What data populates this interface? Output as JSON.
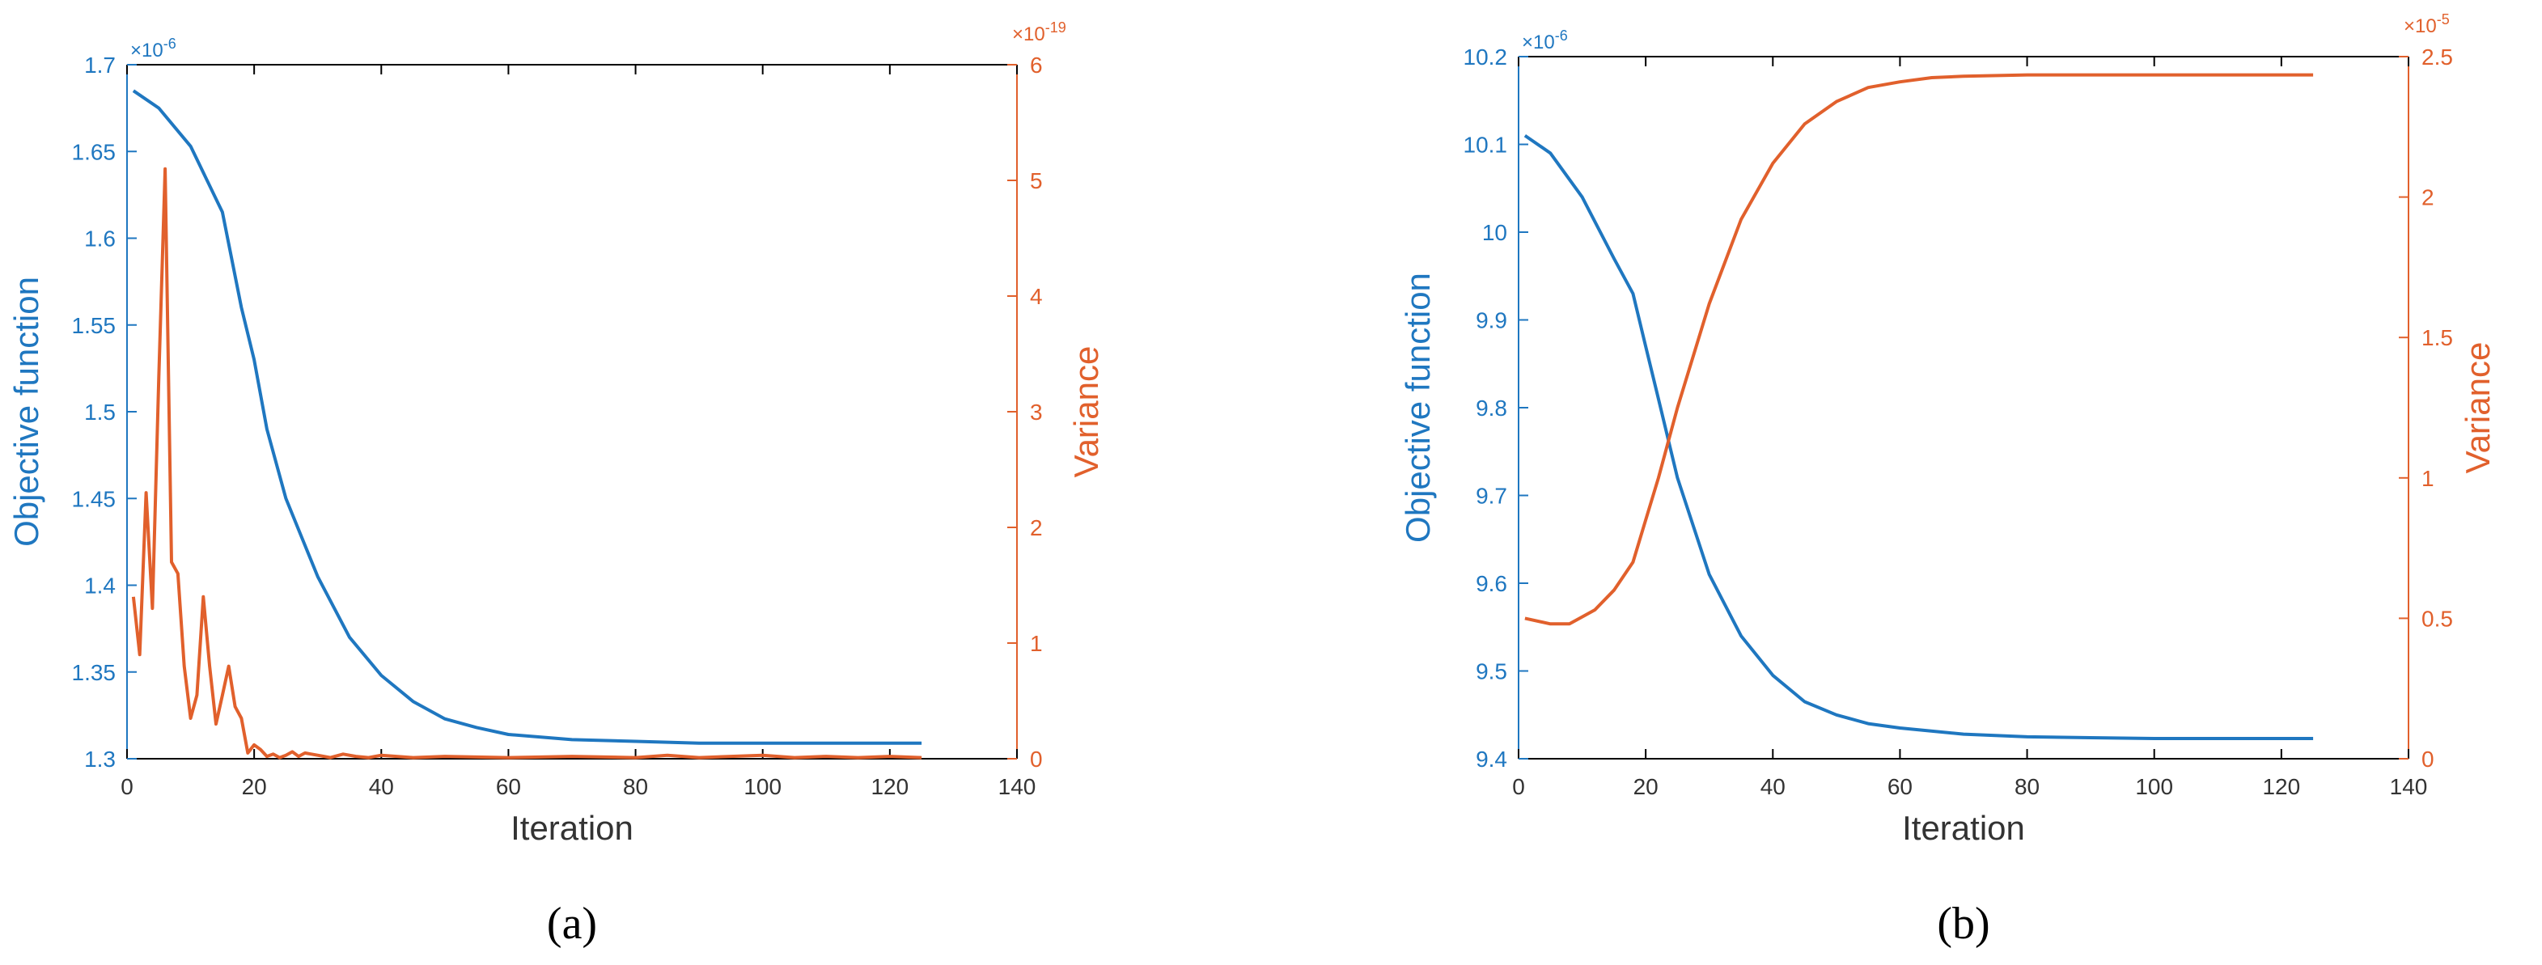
{
  "colors": {
    "left": "#1F77C0",
    "right": "#E1602C",
    "axis": "#000000"
  },
  "chart_data": [
    {
      "type": "line",
      "panel_label": "(a)",
      "xlabel": "Iteration",
      "ylabel_left": "Objective function",
      "ylabel_right": "Variance",
      "xlim": [
        0,
        140
      ],
      "xticks": [
        0,
        20,
        40,
        60,
        80,
        100,
        120,
        140
      ],
      "ylim_left": [
        1.3,
        1.7
      ],
      "yticks_left": [
        "1.3",
        "1.35",
        "1.4",
        "1.45",
        "1.5",
        "1.55",
        "1.6",
        "1.65",
        "1.7"
      ],
      "yscale_left": "×10",
      "yscale_left_exp": "-6",
      "ylim_right": [
        0,
        6
      ],
      "yticks_right": [
        "0",
        "1",
        "2",
        "3",
        "4",
        "5",
        "6"
      ],
      "yscale_right": "×10",
      "yscale_right_exp": "-19",
      "grid": false,
      "series": [
        {
          "axis": "left",
          "x": [
            1,
            5,
            10,
            15,
            18,
            20,
            22,
            25,
            30,
            35,
            40,
            45,
            50,
            55,
            60,
            70,
            80,
            90,
            100,
            110,
            125
          ],
          "y": [
            1.685,
            1.675,
            1.653,
            1.615,
            1.56,
            1.53,
            1.49,
            1.45,
            1.405,
            1.37,
            1.348,
            1.333,
            1.323,
            1.318,
            1.314,
            1.311,
            1.31,
            1.309,
            1.309,
            1.309,
            1.309
          ]
        },
        {
          "axis": "right",
          "x": [
            1,
            2,
            3,
            4,
            5,
            6,
            7,
            8,
            9,
            10,
            11,
            12,
            13,
            14,
            15,
            16,
            17,
            18,
            19,
            20,
            21,
            22,
            23,
            24,
            25,
            26,
            27,
            28,
            30,
            32,
            34,
            36,
            38,
            40,
            45,
            50,
            60,
            70,
            80,
            85,
            90,
            95,
            100,
            105,
            110,
            115,
            120,
            125
          ],
          "y": [
            1.4,
            0.9,
            2.3,
            1.3,
            3.3,
            5.1,
            1.7,
            1.6,
            0.8,
            0.35,
            0.55,
            1.4,
            0.8,
            0.3,
            0.55,
            0.8,
            0.45,
            0.35,
            0.05,
            0.12,
            0.08,
            0.02,
            0.04,
            0.01,
            0.03,
            0.06,
            0.02,
            0.05,
            0.03,
            0.01,
            0.04,
            0.02,
            0.01,
            0.03,
            0.01,
            0.02,
            0.01,
            0.02,
            0.01,
            0.03,
            0.01,
            0.02,
            0.03,
            0.01,
            0.02,
            0.01,
            0.02,
            0.01
          ]
        }
      ]
    },
    {
      "type": "line",
      "panel_label": "(b)",
      "xlabel": "Iteration",
      "ylabel_left": "Objective function",
      "ylabel_right": "Variance",
      "xlim": [
        0,
        140
      ],
      "xticks": [
        0,
        20,
        40,
        60,
        80,
        100,
        120,
        140
      ],
      "ylim_left": [
        9.4,
        10.2
      ],
      "yticks_left": [
        "9.4",
        "9.5",
        "9.6",
        "9.7",
        "9.8",
        "9.9",
        "10",
        "10.1",
        "10.2"
      ],
      "yscale_left": "×10",
      "yscale_left_exp": "-6",
      "ylim_right": [
        0,
        2.5
      ],
      "yticks_right": [
        "0",
        "0.5",
        "1",
        "1.5",
        "2",
        "2.5"
      ],
      "yscale_right": "×10",
      "yscale_right_exp": "-5",
      "grid": false,
      "series": [
        {
          "axis": "left",
          "x": [
            1,
            5,
            10,
            15,
            18,
            20,
            22,
            25,
            30,
            35,
            40,
            45,
            50,
            55,
            60,
            70,
            80,
            90,
            100,
            110,
            125
          ],
          "y": [
            10.11,
            10.09,
            10.04,
            9.97,
            9.93,
            9.87,
            9.81,
            9.72,
            9.61,
            9.54,
            9.495,
            9.465,
            9.45,
            9.44,
            9.435,
            9.428,
            9.425,
            9.424,
            9.423,
            9.423,
            9.423
          ]
        },
        {
          "axis": "right",
          "x": [
            1,
            5,
            8,
            12,
            15,
            18,
            20,
            22,
            25,
            30,
            35,
            40,
            45,
            50,
            55,
            60,
            65,
            70,
            80,
            90,
            100,
            110,
            125
          ],
          "y": [
            0.5,
            0.48,
            0.48,
            0.53,
            0.6,
            0.7,
            0.85,
            1.0,
            1.25,
            1.62,
            1.92,
            2.12,
            2.26,
            2.34,
            2.39,
            2.41,
            2.425,
            2.43,
            2.435,
            2.435,
            2.435,
            2.435,
            2.435
          ]
        }
      ]
    }
  ]
}
